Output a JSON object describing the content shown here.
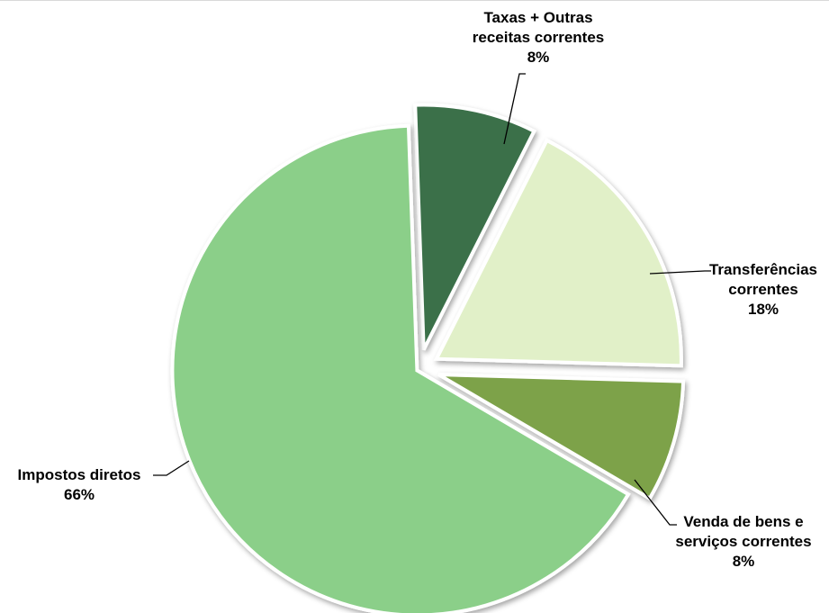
{
  "chart_data": {
    "type": "pie",
    "slices": [
      {
        "lines": [
          "Taxas + Outras",
          "receitas correntes",
          "8%"
        ],
        "value": 8,
        "color": "#3a704a"
      },
      {
        "lines": [
          "Transferências",
          "correntes",
          "18%"
        ],
        "value": 18,
        "color": "#e1f0c8"
      },
      {
        "lines": [
          "Venda de bens e",
          "serviços correntes",
          "8%"
        ],
        "value": 8,
        "color": "#7da24a"
      },
      {
        "lines": [
          "Impostos diretos",
          "66%"
        ],
        "value": 66,
        "color": "#8bcf89"
      }
    ]
  }
}
